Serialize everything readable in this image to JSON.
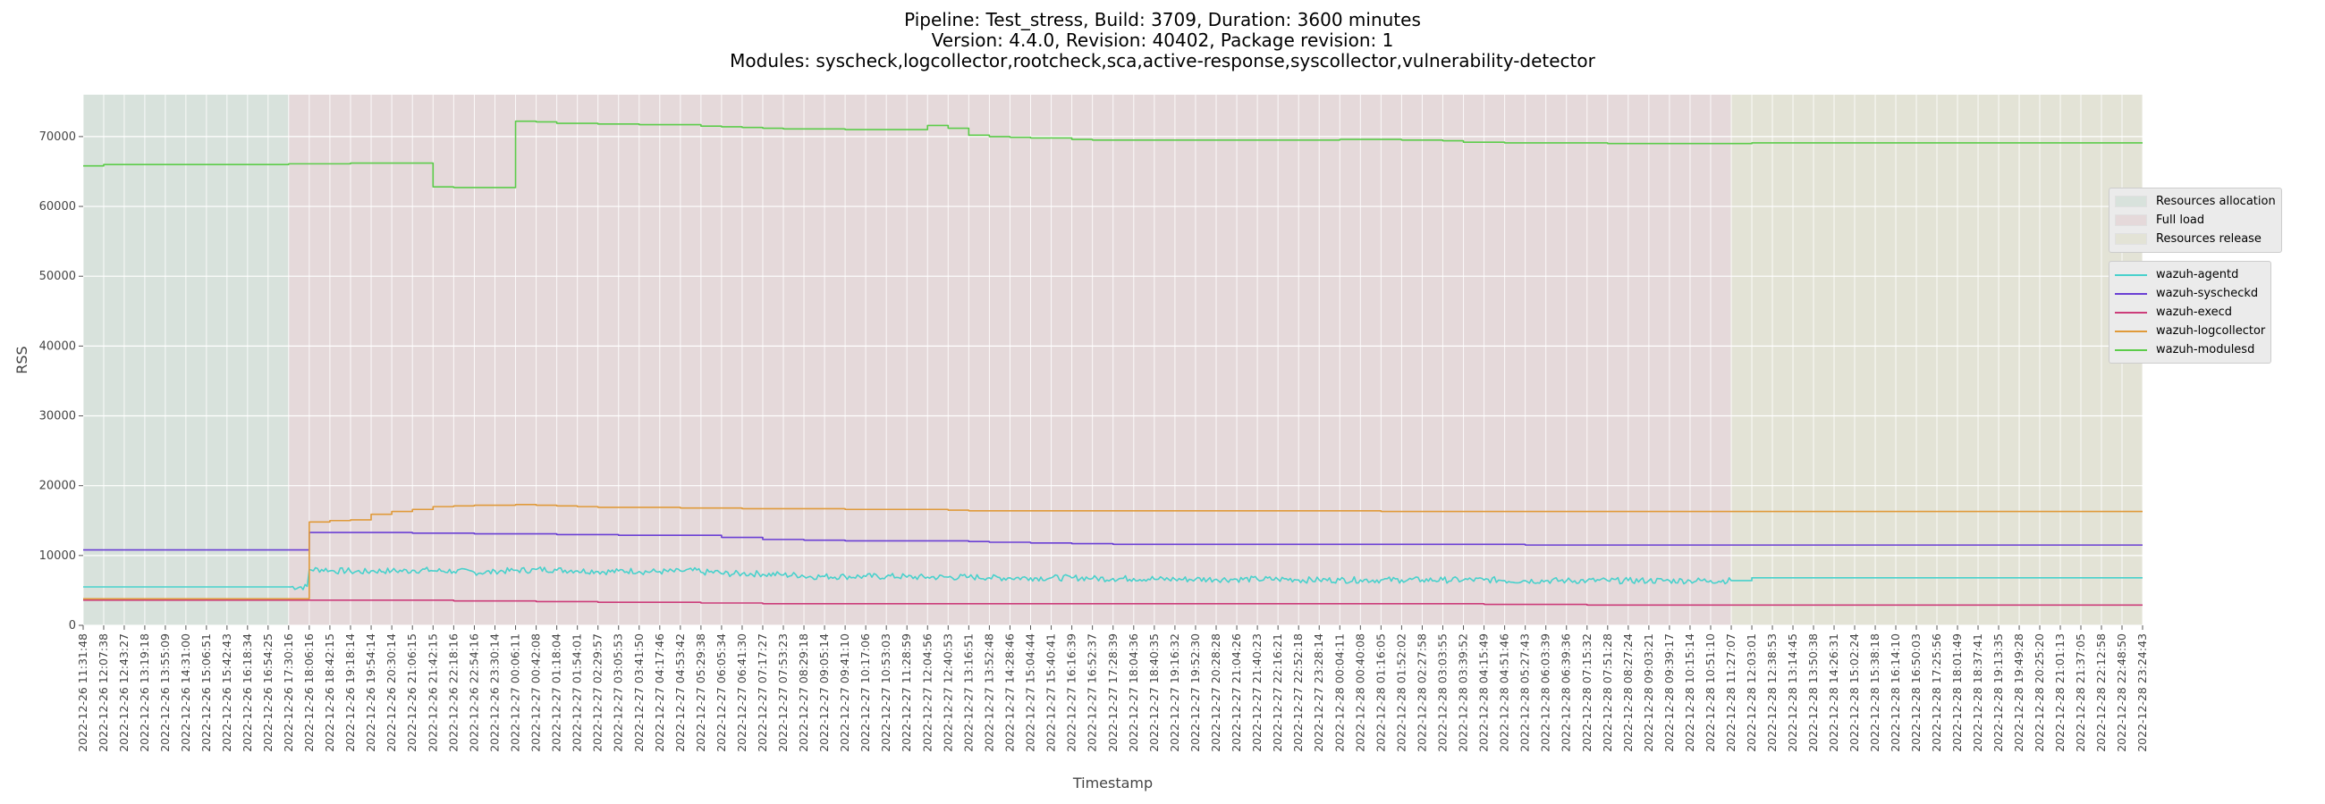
{
  "title": {
    "line1": "Pipeline: Test_stress, Build: 3709, Duration: 3600 minutes",
    "line2": "Version: 4.4.0, Revision: 40402, Package revision: 1",
    "line3": "Modules: syscheck,logcollector,rootcheck,sca,active-response,syscollector,vulnerability-detector"
  },
  "chart_data": {
    "type": "line",
    "xlabel": "Timestamp",
    "ylabel": "RSS",
    "ylim": [
      0,
      76000
    ],
    "yticks": [
      0,
      10000,
      20000,
      30000,
      40000,
      50000,
      60000,
      70000
    ],
    "grid": true,
    "x_start": "2022-12-26 11:31:48",
    "x_end": "2022-12-28 23:24:43",
    "x": [
      "2022-12-26 11:31:48",
      "2022-12-26 12:07:38",
      "2022-12-26 12:43:27",
      "2022-12-26 13:19:18",
      "2022-12-26 13:55:09",
      "2022-12-26 14:31:00",
      "2022-12-26 15:06:51",
      "2022-12-26 15:42:43",
      "2022-12-26 16:18:34",
      "2022-12-26 16:54:25",
      "2022-12-26 17:30:16",
      "2022-12-26 18:06:16",
      "2022-12-26 18:42:15",
      "2022-12-26 19:18:14",
      "2022-12-26 19:54:14",
      "2022-12-26 20:30:14",
      "2022-12-26 21:06:15",
      "2022-12-26 21:42:15",
      "2022-12-26 22:18:16",
      "2022-12-26 22:54:16",
      "2022-12-26 23:30:14",
      "2022-12-27 00:06:11",
      "2022-12-27 00:42:08",
      "2022-12-27 01:18:04",
      "2022-12-27 01:54:01",
      "2022-12-27 02:29:57",
      "2022-12-27 03:05:53",
      "2022-12-27 03:41:50",
      "2022-12-27 04:17:46",
      "2022-12-27 04:53:42",
      "2022-12-27 05:29:38",
      "2022-12-27 06:05:34",
      "2022-12-27 06:41:30",
      "2022-12-27 07:17:27",
      "2022-12-27 07:53:23",
      "2022-12-27 08:29:18",
      "2022-12-27 09:05:14",
      "2022-12-27 09:41:10",
      "2022-12-27 10:17:06",
      "2022-12-27 10:53:03",
      "2022-12-27 11:28:59",
      "2022-12-27 12:04:56",
      "2022-12-27 12:40:53",
      "2022-12-27 13:16:51",
      "2022-12-27 13:52:48",
      "2022-12-27 14:28:46",
      "2022-12-27 15:04:44",
      "2022-12-27 15:40:41",
      "2022-12-27 16:16:39",
      "2022-12-27 16:52:37",
      "2022-12-27 17:28:39",
      "2022-12-27 18:04:36",
      "2022-12-27 18:40:35",
      "2022-12-27 19:16:32",
      "2022-12-27 19:52:30",
      "2022-12-27 20:28:28",
      "2022-12-27 21:04:26",
      "2022-12-27 21:40:23",
      "2022-12-27 22:16:21",
      "2022-12-27 22:52:18",
      "2022-12-27 23:28:14",
      "2022-12-28 00:04:11",
      "2022-12-28 00:40:08",
      "2022-12-28 01:16:05",
      "2022-12-28 01:52:02",
      "2022-12-28 02:27:58",
      "2022-12-28 03:03:55",
      "2022-12-28 03:39:52",
      "2022-12-28 04:15:49",
      "2022-12-28 04:51:46",
      "2022-12-28 05:27:43",
      "2022-12-28 06:03:39",
      "2022-12-28 06:39:36",
      "2022-12-28 07:15:32",
      "2022-12-28 07:51:28",
      "2022-12-28 08:27:24",
      "2022-12-28 09:03:21",
      "2022-12-28 09:39:17",
      "2022-12-28 10:15:14",
      "2022-12-28 10:51:10",
      "2022-12-28 11:27:07",
      "2022-12-28 12:03:01",
      "2022-12-28 12:38:53",
      "2022-12-28 13:14:45",
      "2022-12-28 13:50:38",
      "2022-12-28 14:26:31",
      "2022-12-28 15:02:24",
      "2022-12-28 15:38:18",
      "2022-12-28 16:14:10",
      "2022-12-28 16:50:03",
      "2022-12-28 17:25:56",
      "2022-12-28 18:01:49",
      "2022-12-28 18:37:41",
      "2022-12-28 19:13:35",
      "2022-12-28 19:49:28",
      "2022-12-28 20:25:20",
      "2022-12-28 21:01:13",
      "2022-12-28 21:37:05",
      "2022-12-28 22:12:58",
      "2022-12-28 22:48:50",
      "2022-12-28 23:24:43"
    ],
    "phases": [
      {
        "name": "Resources allocation",
        "start": "2022-12-26 11:31:48",
        "end": "2022-12-26 17:30:16",
        "color": "#d8e2dc"
      },
      {
        "name": "Full load",
        "start": "2022-12-26 17:30:16",
        "end": "2022-12-28 11:27:07",
        "color": "#e5d9da"
      },
      {
        "name": "Resources release",
        "start": "2022-12-28 11:27:07",
        "end": "2022-12-28 23:24:43",
        "color": "#e3e3d6"
      }
    ],
    "series": [
      {
        "name": "wazuh-agentd",
        "color": "#48d1cc",
        "noisy_start": "2022-12-26 17:30:16",
        "noisy_end": "2022-12-28 11:27:07",
        "values": [
          5500,
          5500,
          5500,
          5500,
          5500,
          5500,
          5500,
          5500,
          5500,
          5500,
          5500,
          8000,
          7800,
          7700,
          7800,
          7800,
          7900,
          7800,
          7700,
          7600,
          7800,
          7900,
          8000,
          7900,
          7800,
          7700,
          7800,
          7700,
          7700,
          7800,
          7600,
          7400,
          7400,
          7300,
          7200,
          7000,
          7000,
          7000,
          7000,
          7000,
          6900,
          6900,
          6900,
          6900,
          6800,
          6800,
          6800,
          6800,
          6800,
          6700,
          6700,
          6700,
          6600,
          6600,
          6600,
          6600,
          6600,
          6600,
          6600,
          6500,
          6500,
          6500,
          6500,
          6500,
          6500,
          6500,
          6500,
          6500,
          6500,
          6400,
          6400,
          6400,
          6400,
          6400,
          6400,
          6400,
          6400,
          6400,
          6400,
          6400,
          6400,
          6800,
          6800,
          6800,
          6800,
          6800,
          6800,
          6800,
          6800,
          6800,
          6800,
          6800,
          6800,
          6800,
          6800,
          6800,
          6800,
          6800,
          6800,
          6800,
          6800
        ]
      },
      {
        "name": "wazuh-syscheckd",
        "color": "#6a3fd4",
        "noisy_start": "",
        "noisy_end": "",
        "values": [
          10800,
          10800,
          10800,
          10800,
          10800,
          10800,
          10800,
          10800,
          10800,
          10800,
          10800,
          13300,
          13300,
          13300,
          13300,
          13300,
          13200,
          13200,
          13200,
          13100,
          13100,
          13100,
          13100,
          13000,
          13000,
          13000,
          12900,
          12900,
          12900,
          12900,
          12900,
          12600,
          12600,
          12300,
          12300,
          12200,
          12200,
          12100,
          12100,
          12100,
          12100,
          12100,
          12100,
          12000,
          11900,
          11900,
          11800,
          11800,
          11700,
          11700,
          11600,
          11600,
          11600,
          11600,
          11600,
          11600,
          11600,
          11600,
          11600,
          11600,
          11600,
          11600,
          11600,
          11600,
          11600,
          11600,
          11600,
          11600,
          11600,
          11600,
          11500,
          11500,
          11500,
          11500,
          11500,
          11500,
          11500,
          11500,
          11500,
          11500,
          11500,
          11500,
          11500,
          11500,
          11500,
          11500,
          11500,
          11500,
          11500,
          11500,
          11500,
          11500,
          11500,
          11500,
          11500,
          11500,
          11500,
          11500,
          11500,
          11500,
          11500
        ]
      },
      {
        "name": "wazuh-execd",
        "color": "#cc3d7a",
        "noisy_start": "",
        "noisy_end": "",
        "values": [
          3600,
          3600,
          3600,
          3600,
          3600,
          3600,
          3600,
          3600,
          3600,
          3600,
          3600,
          3600,
          3600,
          3600,
          3600,
          3600,
          3600,
          3600,
          3500,
          3500,
          3500,
          3500,
          3400,
          3400,
          3400,
          3300,
          3300,
          3300,
          3300,
          3300,
          3200,
          3200,
          3200,
          3100,
          3100,
          3100,
          3100,
          3100,
          3100,
          3100,
          3100,
          3100,
          3100,
          3100,
          3100,
          3100,
          3100,
          3100,
          3100,
          3100,
          3100,
          3100,
          3100,
          3100,
          3100,
          3100,
          3100,
          3100,
          3100,
          3100,
          3100,
          3100,
          3100,
          3100,
          3100,
          3100,
          3100,
          3100,
          3000,
          3000,
          3000,
          3000,
          3000,
          2900,
          2900,
          2900,
          2900,
          2900,
          2900,
          2900,
          2900,
          2900,
          2900,
          2900,
          2900,
          2900,
          2900,
          2900,
          2900,
          2900,
          2900,
          2900,
          2900,
          2900,
          2900,
          2900,
          2900,
          2900,
          2900,
          2900,
          2900
        ]
      },
      {
        "name": "wazuh-logcollector",
        "color": "#e09a3a",
        "noisy_start": "",
        "noisy_end": "",
        "values": [
          3800,
          3800,
          3800,
          3800,
          3800,
          3800,
          3800,
          3800,
          3800,
          3800,
          3800,
          14800,
          15000,
          15100,
          15900,
          16300,
          16600,
          17000,
          17100,
          17200,
          17200,
          17300,
          17200,
          17100,
          17000,
          16900,
          16900,
          16900,
          16900,
          16800,
          16800,
          16800,
          16700,
          16700,
          16700,
          16700,
          16700,
          16600,
          16600,
          16600,
          16600,
          16600,
          16500,
          16400,
          16400,
          16400,
          16400,
          16400,
          16400,
          16400,
          16400,
          16400,
          16400,
          16400,
          16400,
          16400,
          16400,
          16400,
          16400,
          16400,
          16400,
          16400,
          16400,
          16300,
          16300,
          16300,
          16300,
          16300,
          16300,
          16300,
          16300,
          16300,
          16300,
          16300,
          16300,
          16300,
          16300,
          16300,
          16300,
          16300,
          16300,
          16300,
          16300,
          16300,
          16300,
          16300,
          16300,
          16300,
          16300,
          16300,
          16300,
          16300,
          16300,
          16300,
          16300,
          16300,
          16300,
          16300,
          16300,
          16300,
          16300
        ]
      },
      {
        "name": "wazuh-modulesd",
        "color": "#5ccc4a",
        "noisy_start": "",
        "noisy_end": "",
        "values": [
          65800,
          66000,
          66000,
          66000,
          66000,
          66000,
          66000,
          66000,
          66000,
          66000,
          66100,
          66100,
          66100,
          66200,
          66200,
          66200,
          66200,
          62800,
          62700,
          62700,
          62700,
          72200,
          72100,
          71900,
          71900,
          71800,
          71800,
          71700,
          71700,
          71700,
          71500,
          71400,
          71300,
          71200,
          71100,
          71100,
          71100,
          71000,
          71000,
          71000,
          71000,
          71600,
          71200,
          70200,
          70000,
          69900,
          69800,
          69800,
          69600,
          69500,
          69500,
          69500,
          69500,
          69500,
          69500,
          69500,
          69500,
          69500,
          69500,
          69500,
          69500,
          69600,
          69600,
          69600,
          69500,
          69500,
          69400,
          69200,
          69200,
          69100,
          69100,
          69100,
          69100,
          69100,
          69000,
          69000,
          69000,
          69000,
          69000,
          69000,
          69000,
          69100,
          69100,
          69100,
          69100,
          69100,
          69100,
          69100,
          69100,
          69100,
          69100,
          69100,
          69100,
          69100,
          69100,
          69100,
          69100,
          69100,
          69100,
          69100,
          69100
        ]
      }
    ]
  }
}
